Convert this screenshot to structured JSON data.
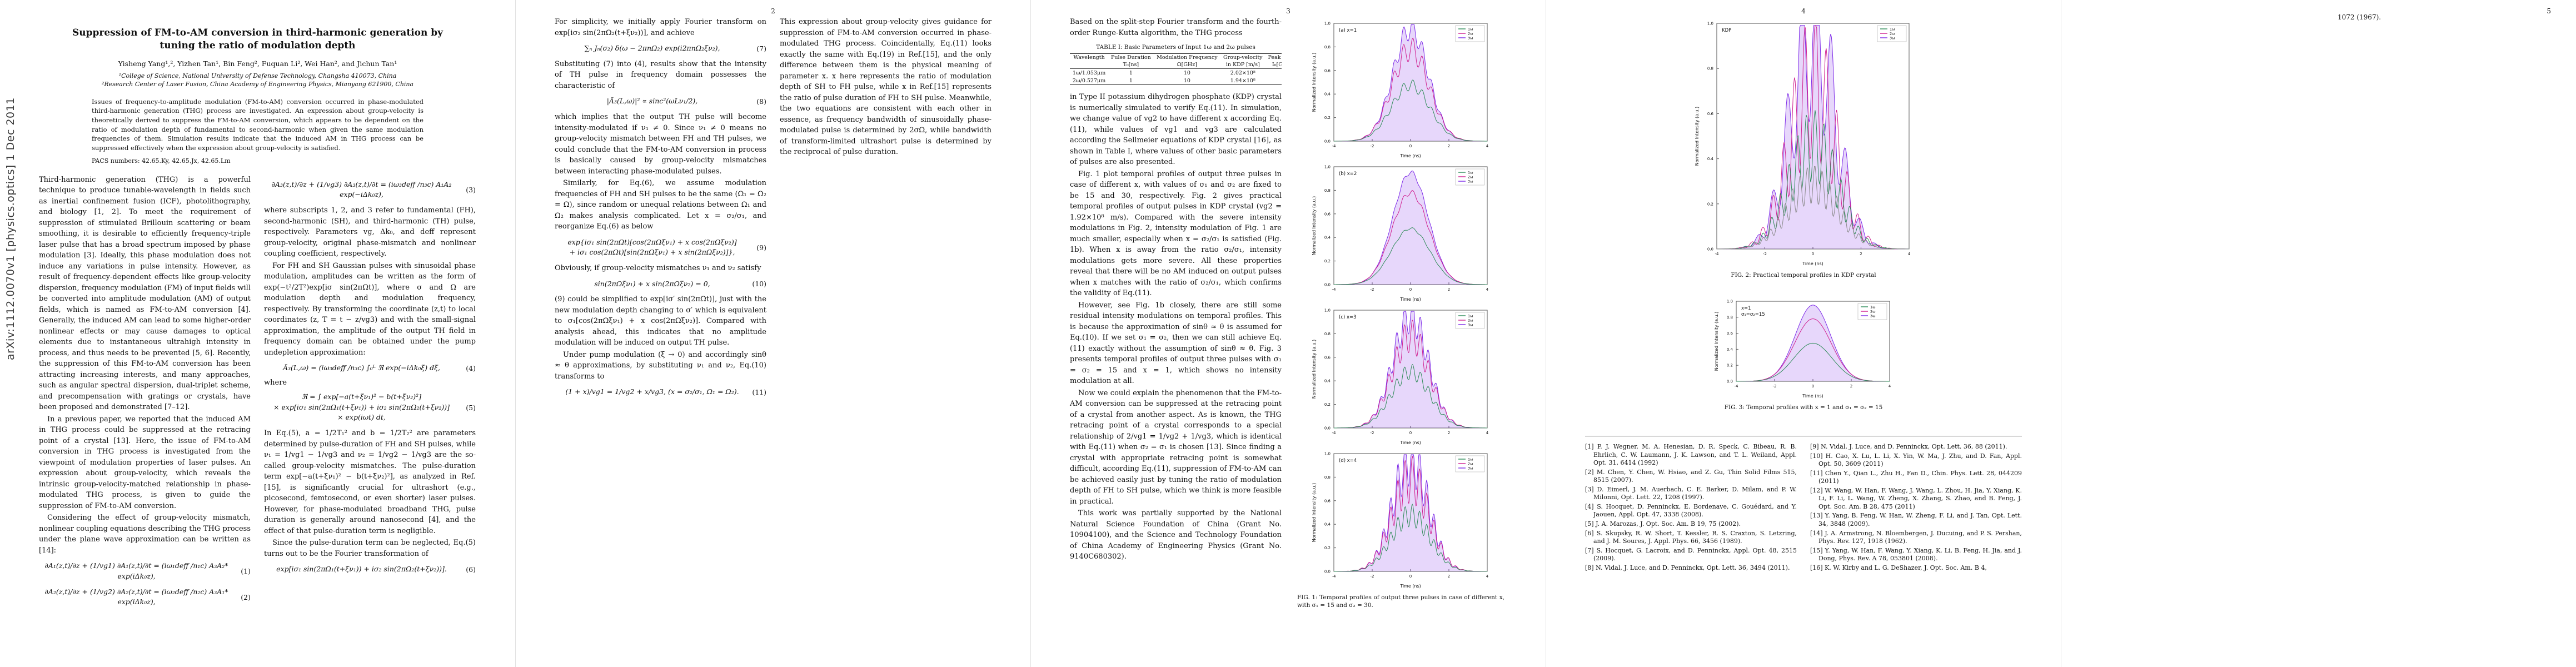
{
  "arxiv_stamp": "arXiv:1112.0070v1  [physics.optics]  1 Dec 2011",
  "p1": {
    "title": "Suppression of FM-to-AM conversion in third-harmonic generation by tuning the ratio of modulation depth",
    "authors": "Yisheng Yang¹,², Yizhen Tan¹, Bin Feng², Fuquan Li², Wei Han², and Jichun Tan¹",
    "affil1": "¹College of Science, National University of Defense Technology, Changsha 410073, China",
    "affil2": "²Research Center of Laser Fusion, China Academy of Engineering Physics, Mianyang 621900, China",
    "abstract": "Issues of frequency-to-amplitude modulation (FM-to-AM) conversion occurred in phase-modulated third-harmonic generation (THG) process are investigated. An expression about group-velocity is theoretically derived to suppress the FM-to-AM conversion, which appears to be dependent on the ratio of modulation depth of fundamental to second-harmonic when given the same modulation frequencies of them. Simulation results indicate that the induced AM in THG process can be suppressed effectively when the expression about group-velocity is satisfied.",
    "pacs": "PACS numbers: 42.65.Ky, 42.65.Jx, 42.65.Lm",
    "c1p1": "Third-harmonic generation (THG) is a powerful technique to produce tunable-wavelength in fields such as inertial confinement fusion (ICF), photolithography, and biology [1, 2]. To meet the requirement of suppression of stimulated Brillouin scattering or beam smoothing, it is desirable to efficiently frequency-triple laser pulse that has a broad spectrum imposed by phase modulation [3]. Ideally, this phase modulation does not induce any variations in pulse intensity. However, as result of frequency-dependent effects like group-velocity dispersion, frequency modulation (FM) of input fields will be converted into amplitude modulation (AM) of output fields, which is named as FM-to-AM conversion [4]. Generally, the induced AM can lead to some higher-order nonlinear effects or may cause damages to optical elements due to instantaneous ultrahigh intensity in process, and thus needs to be prevented [5, 6]. Recently, the suppression of this FM-to-AM conversion has been attracting increasing interests, and many approaches, such as angular spectral dispersion, dual-triplet scheme, and precompensation with gratings or crystals, have been proposed and demonstrated [7–12].",
    "c1p2": "In a previous paper, we reported that the induced AM in THG process could be suppressed at the retracing point of a crystal [13]. Here, the issue of FM-to-AM conversion in THG process is investigated from the viewpoint of modulation properties of laser pulses. An expression about group-velocity, which reveals the intrinsic group-velocity-matched relationship in phase-modulated THG process, is given to guide the suppression of FM-to-AM conversion.",
    "c1p3": "Considering the effect of group-velocity mismatch, nonlinear coupling equations describing the THG process under the plane wave approximation can be written as [14]:",
    "eq1": {
      "b": "∂A₁(z,t)/∂z + (1/vg1) ∂A₁(z,t)/∂t = (iω₁deff /n₁c) A₃A₂* exp(iΔk₀z),",
      "n": "(1)"
    },
    "eq2": {
      "b": "∂A₂(z,t)/∂z + (1/vg2) ∂A₂(z,t)/∂t = (iω₂deff /n₂c) A₃A₁* exp(iΔk₀z),",
      "n": "(2)"
    },
    "eq3": {
      "b": "∂A₃(z,t)/∂z + (1/vg3) ∂A₃(z,t)/∂t = (iω₃deff /n₃c) A₁A₂ exp(−iΔk₀z),",
      "n": "(3)"
    },
    "c2p1": "where subscripts 1, 2, and 3 refer to fundamental (FH), second-harmonic (SH), and third-harmonic (TH) pulse, respectively. Parameters vg, Δk₀, and deff represent group-velocity, original phase-mismatch and nonlinear coupling coefficient, respectively.",
    "c2p2": "For FH and SH Gaussian pulses with sinusoidal phase modulation, amplitudes can be written as the form of exp(−t²/2T²)exp[iσ sin(2πΩt)], where σ and Ω are modulation depth and modulation frequency, respectively. By transforming the coordinate (z,t) to local coordinates (z, T = t − z/vg3) and with the small-signal approximation, the amplitude of the output TH field in frequency domain can be obtained under the pump undepletion approximation:",
    "eq4": {
      "b": "Ã₃(L,ω) = (iω₃deff /n₃c) ∫₀ᴸ ℜ exp(−iΔk₀ξ) dξ,",
      "n": "(4)"
    },
    "where_label": "where",
    "eq5": {
      "b": "ℜ = ∫ exp[−a(t+ξν₁)² − b(t+ξν₂)²]\n× exp[iσ₁ sin(2πΩ₁(t+ξν₁)) + iσ₂ sin(2πΩ₂(t+ξν₂))]\n× exp(iωt) dt,",
      "n": "(5)"
    },
    "c2p3": "In Eq.(5), a = 1/2T₁² and b = 1/2T₂² are parameters determined by pulse-duration of FH and SH pulses, while ν₁ = 1/vg1 − 1/vg3 and ν₂ = 1/vg2 − 1/vg3 are the so-called group-velocity mismatches. The pulse-duration term exp[−a(t+ξν₁)² − b(t+ξν₂)²], as analyzed in Ref.[15], is significantly crucial for ultrashort (e.g., picosecond, femtosecond, or even shorter) laser pulses. However, for phase-modulated broadband THG, pulse duration is generally around nanosecond [4], and the effect of that pulse-duration term is negligible.",
    "c2p4": "Since the pulse-duration term can be neglected, Eq.(5) turns out to be the Fourier transformation of",
    "eq6": {
      "b": "exp[iσ₁ sin(2πΩ₁(t+ξν₁)) + iσ₂ sin(2πΩ₂(t+ξν₂))].",
      "n": "(6)"
    }
  },
  "p2": {
    "num": "2",
    "c1p1": "For simplicity, we initially apply Fourier transform on exp[iσ₂ sin(2πΩ₂(t+ξν₂))], and achieve",
    "eq7": {
      "b": "∑ₙ Jₙ(σ₂) δ(ω − 2πnΩ₂) exp(i2πnΩ₂ξν₂),",
      "n": "(7)"
    },
    "c1p2": "Substituting (7) into (4), results show that the intensity of TH pulse in frequency domain possesses the characteristic of",
    "eq8": {
      "b": "|Ã₃(L,ω)|² ∝ sinc²(ωLν₁/2),",
      "n": "(8)"
    },
    "c1p3": "which implies that the output TH pulse will become intensity-modulated if ν₁ ≠ 0. Since ν₁ ≠ 0 means no group-velocity mismatch between FH and TH pulses, we could conclude that the FM-to-AM conversion in process is basically caused by group-velocity mismatches between interacting phase-modulated pulses.",
    "c1p4": "Similarly, for Eq.(6), we assume modulation frequencies of FH and SH pulses to be the same (Ω₁ = Ω₂ = Ω), since random or unequal relations between Ω₁ and Ω₂ makes analysis complicated. Let x = σ₂/σ₁, and reorganize Eq.(6) as below",
    "eq9": {
      "b": "exp{iσ₁ sin(2πΩt)[cos(2πΩξν₁) + x cos(2πΩξν₂)]\n+ iσ₁ cos(2πΩt)[sin(2πΩξν₁) + x sin(2πΩξν₂)]},",
      "n": "(9)"
    },
    "c1p5": "Obviously, if group-velocity mismatches ν₁ and ν₂ satisfy",
    "eq10": {
      "b": "sin(2πΩξν₁) + x sin(2πΩξν₂) = 0,",
      "n": "(10)"
    },
    "c1p6": "(9) could be simplified to exp[iσ′ sin(2πΩt)], just with the new modulation depth changing to σ′ which is equivalent to σ₁[cos(2πΩξν₁) + x cos(2πΩξν₂)]. Compared with analysis ahead, this indicates that no amplitude modulation will be induced on output TH pulse.",
    "c1p7": "Under pump modulation (ξ → 0) and accordingly sinθ ≈ θ approximations, by substituting ν₁ and ν₂, Eq.(10) transforms to",
    "eq11": {
      "b": "(1 + x)/vg1 = 1/vg2 + x/vg3,    (x = σ₂/σ₁, Ω₁ = Ω₂).",
      "n": "(11)"
    },
    "c2p1": "This expression about group-velocity gives guidance for suppression of FM-to-AM conversion occurred in phase-modulated THG process. Coincidentally, Eq.(11) looks exactly the same with Eq.(19) in Ref.[15], and the only difference between them is the physical meaning of parameter x. x here represents the ratio of modulation depth of SH to FH pulse, while x in Ref.[15] represents the ratio of pulse duration of FH to SH pulse. Meanwhile, the two equations are consistent with each other in essence, as frequency bandwidth of sinusoidally phase-modulated pulse is determined by 2σΩ, while bandwidth of transform-limited ultrashort pulse is determined by the reciprocal of pulse duration."
  },
  "p3": {
    "num": "3",
    "c1p1": "Based on the split-step Fourier transform and the fourth-order Runge-Kutta algorithm, the THG process",
    "table": {
      "caption": "TABLE I: Basic Parameters of Input 1ω and 2ω pulses",
      "h1": [
        "Wavelength",
        "Pulse Duration",
        "Modulation Frequency",
        "Group-velocity",
        "Peak Intensity"
      ],
      "h2": [
        "",
        "T₀[ns]",
        "Ω[GHz]",
        "in KDP [m/s]",
        "I₀[GW/cm²]"
      ],
      "rows": [
        [
          "1ω/1.053μm",
          "1",
          "10",
          "2.02×10⁸",
          "1"
        ],
        [
          "2ω/0.527μm",
          "1",
          "10",
          "1.94×10⁸",
          "2"
        ]
      ]
    },
    "c1p2": "in Type II potassium dihydrogen phosphate (KDP) crystal is numerically simulated to verify Eq.(11). In simulation, we change value of vg2 to have different x according Eq.(11), while values of vg1 and vg3 are calculated according the Sellmeier equations of KDP crystal [16], as shown in Table I, where values of other basic parameters of pulses are also presented.",
    "c1p3": "Fig. 1 plot temporal profiles of output three pulses in case of different x, with values of σ₁ and σ₂ are fixed to be 15 and 30, respectively. Fig. 2 gives practical temporal profiles of output pulses in KDP crystal (vg2 = 1.92×10⁸ m/s). Compared with the severe intensity modulations in Fig. 2, intensity modulation of Fig. 1 are much smaller, especially when x = σ₂/σ₁ is satisfied (Fig. 1b). When x is away from the ratio σ₂/σ₁, intensity modulations gets more severe. All these properties reveal that there will be no AM induced on output pulses when x matches with the ratio of σ₂/σ₁, which confirms the validity of Eq.(11).",
    "c1p4": "However, see Fig. 1b closely, there are still some residual intensity modulations on temporal profiles. This is because the approximation of sinθ ≈ θ is assumed for Eq.(10). If we set σ₁ = σ₂, then we can still achieve Eq.(11) exactly without the assumption of sinθ ≈ θ. Fig. 3 presents temporal profiles of output three pulses with σ₁ = σ₂ = 15 and x = 1, which shows no intensity modulation at all.",
    "c1p5": "Now we could explain the phenomenon that the FM-to-AM conversion can be suppressed at the retracing point of a crystal from another aspect. As is known, the THG retracing point of a crystal corresponds to a special relationship of 2/vg1 = 1/vg2 + 1/vg3, which is identical with Eq.(11) when σ₂ = σ₁ is chosen [13]. Since finding a crystal with appropriate retracing point is somewhat difficult, according Eq.(11), suppression of FM-to-AM can be achieved easily just by tuning the ratio of modulation depth of FH to SH pulse, which we think is more feasible in practical.",
    "c1p6": "This work was partially supported by the National Natural Science Foundation of China (Grant No. 10904100), and the Science and Technology Foundation of China Academy of Engineering Physics (Grant No. 9140C680302)."
  },
  "p4": {
    "num": "4",
    "refs": [
      "[1] P. J. Wegner, M. A. Henesian, D. R. Speck, C. Bibeau, R. B. Ehrlich, C. W. Laumann, J. K. Lawson, and T. L. Weiland, Appl. Opt. 31, 6414 (1992)",
      "[2] M. Chen, Y. Chen, W. Hsiao, and Z. Gu, Thin Solid Films 515, 8515 (2007).",
      "[3] D. Eimerl, J. M. Auerbach, C. E. Barker, D. Milam, and P. W. Milonni, Opt. Lett. 22, 1208 (1997).",
      "[4] S. Hocquet, D. Penninckx, E. Bordenave, C. Gouédard, and Y. Jaouen, Appl. Opt. 47, 3338 (2008).",
      "[5] J. A. Marozas, J. Opt. Soc. Am. B 19, 75 (2002).",
      "[6] S. Skupsky, R. W. Short, T. Kessler, R. S. Craxton, S. Letzring, and J. M. Soures, J. Appl. Phys. 66, 3456 (1989).",
      "[7] S. Hocquet, G. Lacroix, and D. Penninckx, Appl. Opt. 48, 2515 (2009).",
      "[8] N. Vidal, J. Luce, and D. Penninckx, Opt. Lett. 36, 3494 (2011).",
      "[9] N. Vidal, J. Luce, and D. Penninckx, Opt. Lett. 36, 88 (2011).",
      "[10] H. Cao, X. Lu, L. Li, X. Yin, W. Ma, J. Zhu, and D. Fan, Appl. Opt. 50, 3609 (2011)",
      "[11] Chen Y., Qian L., Zhu H., Fan D., Chin. Phys. Lett. 28, 044209 (2011)",
      "[12] W. Wang, W. Han, F. Wang, J. Wang, L. Zhou, H. Jia, Y. Xiang, K. Li, F. Li, L. Wang, W. Zheng, X. Zhang, S. Zhao, and B. Feng, J. Opt. Soc. Am. B 28, 475 (2011)",
      "[13] Y. Yang, B. Feng, W. Han, W. Zheng, F. Li, and J. Tan, Opt. Lett. 34, 3848 (2009).",
      "[14] J. A. Armstrong, N. Bloembergen, J. Ducuing, and P. S. Pershan, Phys. Rev. 127, 1918 (1962).",
      "[15] Y. Yang, W. Han, F. Wang, Y. Xiang, K. Li, B. Feng, H. Jia, and J. Dong, Phys. Rev. A 78, 053801 (2008).",
      "[16] K. W. Kirby and L. G. DeShazer, J. Opt. Soc. Am. B 4,"
    ]
  },
  "p5": {
    "num": "5",
    "cont": "1072 (1967)."
  },
  "fig": {
    "shared": {
      "xlab": "Time (ns)",
      "ylab": "Normalized Intensity (a.u.)",
      "yticks": [
        "0.0",
        "0.2",
        "0.4",
        "0.6",
        "0.8",
        "1.0"
      ],
      "xticks": [
        "-4",
        "-2",
        "0",
        "2",
        "4"
      ],
      "legend": [
        {
          "label": "1ω",
          "color": "#2e8b57"
        },
        {
          "label": "2ω",
          "color": "#d02090"
        },
        {
          "label": "3ω",
          "color": "#7d2ae8"
        }
      ]
    },
    "fig1": {
      "caption": "FIG. 1: Temporal profiles of output three pulses in case of different x, with σ₁ = 15 and σ₂ = 30.",
      "panels": [
        {
          "label": "(a) x=1",
          "curves": [
            {
              "c": "#7d2ae8",
              "amp": 1.0,
              "sig": 1.15,
              "r": 0.1,
              "f": 1.6,
              "fill": true
            },
            {
              "c": "#d02090",
              "amp": 0.82,
              "sig": 1.2,
              "r": 0.13,
              "f": 1.6
            },
            {
              "c": "#2e8b57",
              "amp": 0.5,
              "sig": 1.25,
              "r": 0.1,
              "f": 1.6
            }
          ]
        },
        {
          "label": "(b) x=2",
          "curves": [
            {
              "c": "#7d2ae8",
              "amp": 1.0,
              "sig": 1.15,
              "r": 0.02,
              "f": 1.6,
              "fill": true
            },
            {
              "c": "#d02090",
              "amp": 0.82,
              "sig": 1.2,
              "r": 0.03,
              "f": 1.6
            },
            {
              "c": "#2e8b57",
              "amp": 0.5,
              "sig": 1.25,
              "r": 0.02,
              "f": 1.6
            }
          ]
        },
        {
          "label": "(c) x=3",
          "curves": [
            {
              "c": "#7d2ae8",
              "amp": 1.0,
              "sig": 1.15,
              "r": 0.16,
              "f": 1.9,
              "fill": true
            },
            {
              "c": "#d02090",
              "amp": 0.82,
              "sig": 1.2,
              "r": 0.18,
              "f": 1.9
            },
            {
              "c": "#2e8b57",
              "amp": 0.5,
              "sig": 1.25,
              "r": 0.14,
              "f": 1.9
            }
          ]
        },
        {
          "label": "(d) x=4",
          "curves": [
            {
              "c": "#7d2ae8",
              "amp": 1.0,
              "sig": 1.15,
              "r": 0.24,
              "f": 2.1,
              "fill": true
            },
            {
              "c": "#d02090",
              "amp": 0.82,
              "sig": 1.2,
              "r": 0.26,
              "f": 2.1
            },
            {
              "c": "#2e8b57",
              "amp": 0.5,
              "sig": 1.25,
              "r": 0.2,
              "f": 2.1
            }
          ]
        }
      ]
    },
    "fig2": {
      "label": "KDP",
      "caption": "FIG. 2: Practical temporal profiles in KDP crystal",
      "curves": [
        {
          "c": "#7d2ae8",
          "amp": 1.0,
          "sig": 1.15,
          "r": 0.4,
          "f": 1.3,
          "fill": true
        },
        {
          "c": "#d02090",
          "amp": 0.76,
          "sig": 1.2,
          "r": 0.45,
          "f": 1.8
        },
        {
          "c": "#2e8b57",
          "amp": 0.48,
          "sig": 1.25,
          "r": 0.35,
          "f": 2.2
        },
        {
          "c": "#8a8a8a",
          "amp": 0.3,
          "sig": 1.3,
          "r": 0.3,
          "f": 2.6
        }
      ]
    },
    "fig3": {
      "label": "x=1",
      "label2": "σ₁=σ₂=15",
      "caption": "FIG. 3: Temporal profiles with x = 1 and σ₁ = σ₂ = 15",
      "curves": [
        {
          "c": "#7d2ae8",
          "amp": 1.0,
          "sig": 1.15,
          "fill": true
        },
        {
          "c": "#d02090",
          "amp": 0.82,
          "sig": 1.2
        },
        {
          "c": "#2e8b57",
          "amp": 0.5,
          "sig": 1.25
        }
      ]
    }
  }
}
